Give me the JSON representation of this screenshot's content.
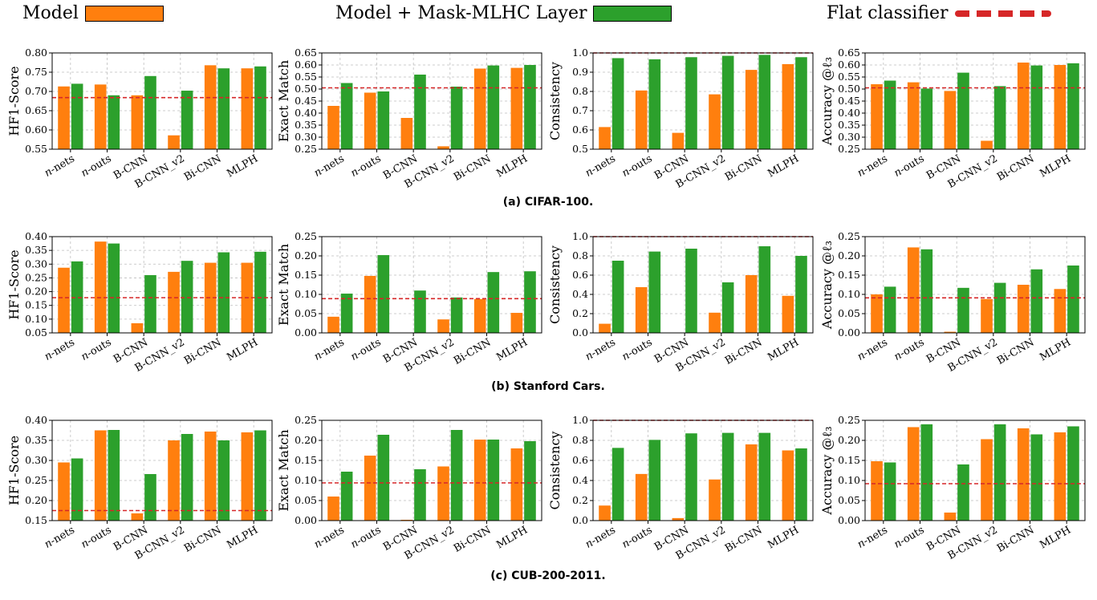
{
  "legend": {
    "model": {
      "label": "Model",
      "color": "#ff7f0e"
    },
    "masked": {
      "label": "Model + Mask-MLHC Layer",
      "color": "#2ca02c"
    },
    "flat": {
      "label": "Flat classifier",
      "color": "#d62728"
    }
  },
  "captions": [
    "(a) CIFAR-100.",
    "(b) Stanford Cars.",
    "(c) CUB-200-2011."
  ],
  "chart_data": [
    {
      "type": "bar",
      "row": 0,
      "col": 0,
      "ylabel": "HF1-Score",
      "ylim": [
        0.55,
        0.8
      ],
      "yticks": [
        "0.55",
        "0.60",
        "0.65",
        "0.70",
        "0.75",
        "0.80"
      ],
      "categories": [
        "n-nets",
        "n-outs",
        "B-CNN",
        "B-CNN_v2",
        "Bi-CNN",
        "MLPH"
      ],
      "series": [
        {
          "name": "Model",
          "values": [
            0.713,
            0.718,
            0.69,
            0.586,
            0.768,
            0.76
          ]
        },
        {
          "name": "Model + Mask-MLHC Layer",
          "values": [
            0.72,
            0.69,
            0.74,
            0.702,
            0.76,
            0.765
          ]
        }
      ],
      "baseline": {
        "name": "Flat classifier",
        "value": 0.684
      },
      "grid": true
    },
    {
      "type": "bar",
      "row": 0,
      "col": 1,
      "ylabel": "Exact Match",
      "ylim": [
        0.25,
        0.65
      ],
      "yticks": [
        "0.25",
        "0.30",
        "0.35",
        "0.40",
        "0.45",
        "0.50",
        "0.55",
        "0.60",
        "0.65"
      ],
      "categories": [
        "n-nets",
        "n-outs",
        "B-CNN",
        "B-CNN_v2",
        "Bi-CNN",
        "MLPH"
      ],
      "series": [
        {
          "name": "Model",
          "values": [
            0.43,
            0.485,
            0.38,
            0.262,
            0.585,
            0.588
          ]
        },
        {
          "name": "Model + Mask-MLHC Layer",
          "values": [
            0.525,
            0.49,
            0.56,
            0.51,
            0.598,
            0.6
          ]
        }
      ],
      "baseline": {
        "name": "Flat classifier",
        "value": 0.505
      },
      "grid": true
    },
    {
      "type": "bar",
      "row": 0,
      "col": 2,
      "ylabel": "Consistency",
      "ylim": [
        0.5,
        1.0
      ],
      "yticks": [
        "0.5",
        "0.6",
        "0.7",
        "0.8",
        "0.9",
        "1.0"
      ],
      "categories": [
        "n-nets",
        "n-outs",
        "B-CNN",
        "B-CNN_v2",
        "Bi-CNN",
        "MLPH"
      ],
      "series": [
        {
          "name": "Model",
          "values": [
            0.615,
            0.805,
            0.585,
            0.785,
            0.912,
            0.942
          ]
        },
        {
          "name": "Model + Mask-MLHC Layer",
          "values": [
            0.973,
            0.967,
            0.978,
            0.985,
            0.99,
            0.978
          ]
        }
      ],
      "baseline": {
        "name": "Flat classifier",
        "value": 1.0
      },
      "grid": true
    },
    {
      "type": "bar",
      "row": 0,
      "col": 3,
      "ylabel": "Accuracy @ℓ₃",
      "ylim": [
        0.25,
        0.65
      ],
      "yticks": [
        "0.25",
        "0.30",
        "0.35",
        "0.40",
        "0.45",
        "0.50",
        "0.55",
        "0.60",
        "0.65"
      ],
      "categories": [
        "n-nets",
        "n-outs",
        "B-CNN",
        "B-CNN_v2",
        "Bi-CNN",
        "MLPH"
      ],
      "series": [
        {
          "name": "Model",
          "values": [
            0.52,
            0.528,
            0.492,
            0.285,
            0.61,
            0.6
          ]
        },
        {
          "name": "Model + Mask-MLHC Layer",
          "values": [
            0.535,
            0.502,
            0.568,
            0.512,
            0.598,
            0.607
          ]
        }
      ],
      "baseline": {
        "name": "Flat classifier",
        "value": 0.505
      },
      "grid": true
    },
    {
      "type": "bar",
      "row": 1,
      "col": 0,
      "ylabel": "HF1-Score",
      "ylim": [
        0.05,
        0.4
      ],
      "yticks": [
        "0.05",
        "0.10",
        "0.15",
        "0.20",
        "0.25",
        "0.30",
        "0.35",
        "0.40"
      ],
      "categories": [
        "n-nets",
        "n-outs",
        "B-CNN",
        "B-CNN_v2",
        "Bi-CNN",
        "MLPH"
      ],
      "series": [
        {
          "name": "Model",
          "values": [
            0.287,
            0.382,
            0.085,
            0.272,
            0.305,
            0.305
          ]
        },
        {
          "name": "Model + Mask-MLHC Layer",
          "values": [
            0.31,
            0.375,
            0.26,
            0.312,
            0.343,
            0.345
          ]
        }
      ],
      "baseline": {
        "name": "Flat classifier",
        "value": 0.178
      },
      "grid": true
    },
    {
      "type": "bar",
      "row": 1,
      "col": 1,
      "ylabel": "Exact Match",
      "ylim": [
        0.0,
        0.25
      ],
      "yticks": [
        "0.00",
        "0.05",
        "0.10",
        "0.15",
        "0.20",
        "0.25"
      ],
      "categories": [
        "n-nets",
        "n-outs",
        "B-CNN",
        "B-CNN_v2",
        "Bi-CNN",
        "MLPH"
      ],
      "series": [
        {
          "name": "Model",
          "values": [
            0.042,
            0.148,
            0.0,
            0.035,
            0.088,
            0.052
          ]
        },
        {
          "name": "Model + Mask-MLHC Layer",
          "values": [
            0.102,
            0.202,
            0.11,
            0.092,
            0.158,
            0.16
          ]
        }
      ],
      "baseline": {
        "name": "Flat classifier",
        "value": 0.089
      },
      "grid": true
    },
    {
      "type": "bar",
      "row": 1,
      "col": 2,
      "ylabel": "Consistency",
      "ylim": [
        0.0,
        1.0
      ],
      "yticks": [
        "0.0",
        "0.2",
        "0.4",
        "0.6",
        "0.8",
        "1.0"
      ],
      "categories": [
        "n-nets",
        "n-outs",
        "B-CNN",
        "B-CNN_v2",
        "Bi-CNN",
        "MLPH"
      ],
      "series": [
        {
          "name": "Model",
          "values": [
            0.095,
            0.475,
            0.0,
            0.21,
            0.6,
            0.385
          ]
        },
        {
          "name": "Model + Mask-MLHC Layer",
          "values": [
            0.75,
            0.845,
            0.875,
            0.525,
            0.9,
            0.8
          ]
        }
      ],
      "baseline": {
        "name": "Flat classifier",
        "value": 1.0
      },
      "grid": true
    },
    {
      "type": "bar",
      "row": 1,
      "col": 3,
      "ylabel": "Accuracy @ℓ₃",
      "ylim": [
        0.0,
        0.25
      ],
      "yticks": [
        "0.00",
        "0.05",
        "0.10",
        "0.15",
        "0.20",
        "0.25"
      ],
      "categories": [
        "n-nets",
        "n-outs",
        "B-CNN",
        "B-CNN_v2",
        "Bi-CNN",
        "MLPH"
      ],
      "series": [
        {
          "name": "Model",
          "values": [
            0.1,
            0.222,
            0.003,
            0.088,
            0.125,
            0.114
          ]
        },
        {
          "name": "Model + Mask-MLHC Layer",
          "values": [
            0.12,
            0.217,
            0.117,
            0.13,
            0.165,
            0.175
          ]
        }
      ],
      "baseline": {
        "name": "Flat classifier",
        "value": 0.091
      },
      "grid": true
    },
    {
      "type": "bar",
      "row": 2,
      "col": 0,
      "ylabel": "HF1-Score",
      "ylim": [
        0.15,
        0.4
      ],
      "yticks": [
        "0.15",
        "0.20",
        "0.25",
        "0.30",
        "0.35",
        "0.40"
      ],
      "categories": [
        "n-nets",
        "n-outs",
        "B-CNN",
        "B-CNN_v2",
        "Bi-CNN",
        "MLPH"
      ],
      "series": [
        {
          "name": "Model",
          "values": [
            0.295,
            0.375,
            0.168,
            0.35,
            0.372,
            0.37
          ]
        },
        {
          "name": "Model + Mask-MLHC Layer",
          "values": [
            0.305,
            0.376,
            0.266,
            0.366,
            0.35,
            0.375
          ]
        }
      ],
      "baseline": {
        "name": "Flat classifier",
        "value": 0.175
      },
      "grid": true
    },
    {
      "type": "bar",
      "row": 2,
      "col": 1,
      "ylabel": "Exact Match",
      "ylim": [
        0.0,
        0.25
      ],
      "yticks": [
        "0.00",
        "0.05",
        "0.10",
        "0.15",
        "0.20",
        "0.25"
      ],
      "categories": [
        "n-nets",
        "n-outs",
        "B-CNN",
        "B-CNN_v2",
        "Bi-CNN",
        "MLPH"
      ],
      "series": [
        {
          "name": "Model",
          "values": [
            0.06,
            0.162,
            0.002,
            0.135,
            0.202,
            0.18
          ]
        },
        {
          "name": "Model + Mask-MLHC Layer",
          "values": [
            0.122,
            0.214,
            0.128,
            0.226,
            0.202,
            0.198
          ]
        }
      ],
      "baseline": {
        "name": "Flat classifier",
        "value": 0.094
      },
      "grid": true
    },
    {
      "type": "bar",
      "row": 2,
      "col": 2,
      "ylabel": "Consistency",
      "ylim": [
        0.0,
        1.0
      ],
      "yticks": [
        "0.0",
        "0.2",
        "0.4",
        "0.6",
        "0.8",
        "1.0"
      ],
      "categories": [
        "n-nets",
        "n-outs",
        "B-CNN",
        "B-CNN_v2",
        "Bi-CNN",
        "MLPH"
      ],
      "series": [
        {
          "name": "Model",
          "values": [
            0.15,
            0.465,
            0.025,
            0.41,
            0.76,
            0.7
          ]
        },
        {
          "name": "Model + Mask-MLHC Layer",
          "values": [
            0.725,
            0.805,
            0.87,
            0.875,
            0.875,
            0.72
          ]
        }
      ],
      "baseline": {
        "name": "Flat classifier",
        "value": 1.0
      },
      "grid": true
    },
    {
      "type": "bar",
      "row": 2,
      "col": 3,
      "ylabel": "Accuracy @ℓ₃",
      "ylim": [
        0.0,
        0.25
      ],
      "yticks": [
        "0.00",
        "0.05",
        "0.10",
        "0.15",
        "0.20",
        "0.25"
      ],
      "categories": [
        "n-nets",
        "n-outs",
        "B-CNN",
        "B-CNN_v2",
        "Bi-CNN",
        "MLPH"
      ],
      "series": [
        {
          "name": "Model",
          "values": [
            0.148,
            0.233,
            0.02,
            0.203,
            0.23,
            0.22
          ]
        },
        {
          "name": "Model + Mask-MLHC Layer",
          "values": [
            0.145,
            0.24,
            0.14,
            0.24,
            0.215,
            0.235
          ]
        }
      ],
      "baseline": {
        "name": "Flat classifier",
        "value": 0.092
      },
      "grid": true
    }
  ]
}
